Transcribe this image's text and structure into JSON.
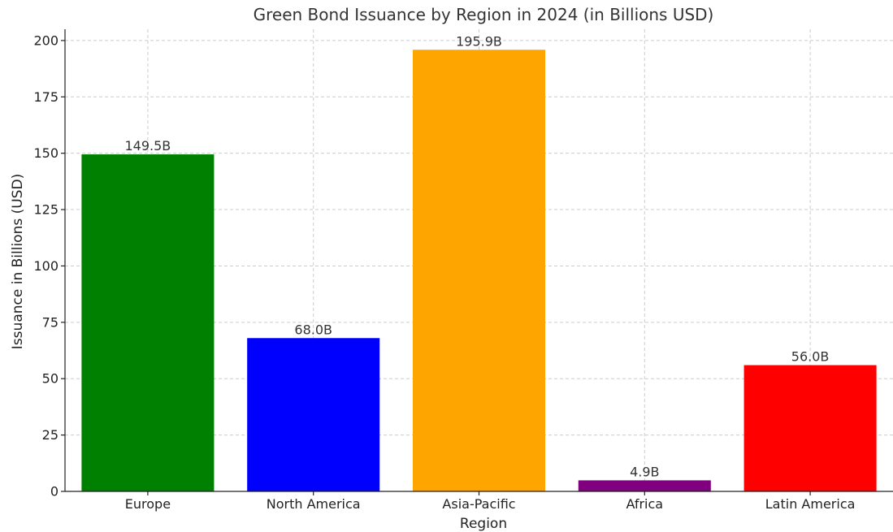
{
  "chart_data": {
    "type": "bar",
    "title": "Green Bond Issuance by Region in 2024 (in Billions USD)",
    "xlabel": "Region",
    "ylabel": "Issuance in Billions (USD)",
    "categories": [
      "Europe",
      "North America",
      "Asia-Pacific",
      "Africa",
      "Latin America"
    ],
    "values": [
      149.5,
      68.0,
      195.9,
      4.9,
      56.0
    ],
    "value_labels": [
      "149.5B",
      "68.0B",
      "195.9B",
      "4.9B",
      "56.0B"
    ],
    "colors": [
      "#008000",
      "#0000ff",
      "#ffa500",
      "#800080",
      "#ff0000"
    ],
    "ylim": [
      0,
      205
    ],
    "yticks": [
      0,
      25,
      50,
      75,
      100,
      125,
      150,
      175,
      200
    ],
    "grid": true,
    "legend": "none"
  }
}
